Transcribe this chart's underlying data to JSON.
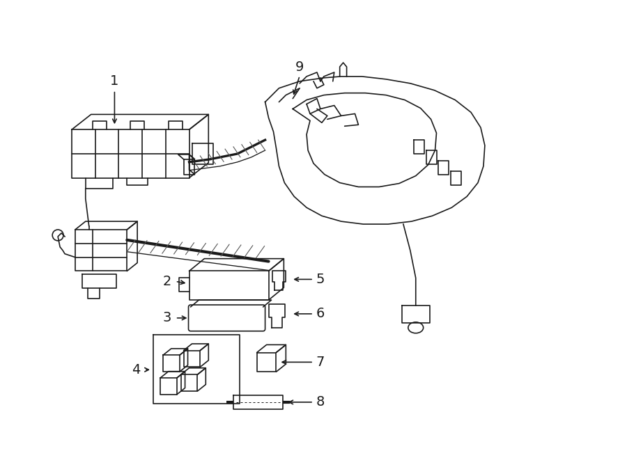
{
  "background_color": "#ffffff",
  "line_color": "#1a1a1a",
  "line_width": 1.2,
  "fig_width": 9.0,
  "fig_height": 6.61,
  "dpi": 100,
  "label_fontsize": 14
}
